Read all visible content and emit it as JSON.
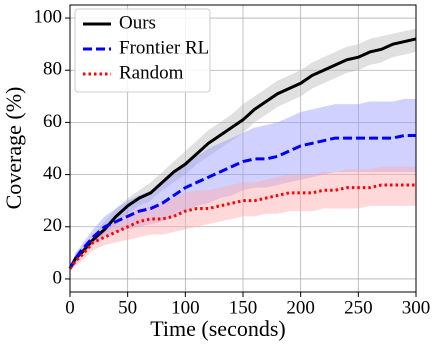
{
  "chart_data": {
    "type": "line",
    "x_label": "Time (seconds)",
    "y_label": "Coverage (%)",
    "x": [
      0,
      5,
      10,
      20,
      30,
      40,
      50,
      60,
      70,
      80,
      90,
      100,
      110,
      120,
      130,
      140,
      150,
      160,
      170,
      180,
      190,
      200,
      210,
      220,
      230,
      240,
      250,
      260,
      270,
      280,
      290,
      300
    ],
    "series": [
      {
        "name": "Ours",
        "color": "#000000",
        "band_color": "#bbbbbb",
        "dash": "solid",
        "values": [
          4,
          8,
          10,
          15,
          19,
          24,
          28,
          31,
          33,
          37,
          41,
          44,
          48,
          52,
          55,
          58,
          61,
          65,
          68,
          71,
          73,
          75,
          78,
          80,
          82,
          84,
          85,
          87,
          88,
          90,
          91,
          92
        ],
        "lower": [
          3,
          6,
          8,
          13,
          17,
          21,
          25,
          28,
          30,
          34,
          37,
          40,
          44,
          47,
          50,
          53,
          56,
          60,
          63,
          66,
          68,
          70,
          73,
          75,
          77,
          79,
          80,
          82,
          83,
          85,
          86,
          87
        ],
        "upper": [
          5,
          10,
          12,
          17,
          22,
          27,
          31,
          34,
          37,
          41,
          45,
          49,
          53,
          57,
          60,
          63,
          67,
          70,
          73,
          76,
          78,
          80,
          83,
          85,
          87,
          89,
          90,
          92,
          93,
          94,
          95,
          96
        ]
      },
      {
        "name": "Frontier RL",
        "color": "#0000ff",
        "band_color": "#9999ff",
        "dash": "dashed",
        "values": [
          4,
          8,
          11,
          16,
          20,
          22,
          24,
          26,
          27,
          29,
          32,
          35,
          37,
          39,
          41,
          43,
          45,
          46,
          46,
          47,
          49,
          51,
          52,
          53,
          54,
          54,
          54,
          54,
          54,
          54,
          55,
          55
        ],
        "lower": [
          3,
          6,
          9,
          13,
          16,
          18,
          19,
          20,
          21,
          22,
          24,
          26,
          28,
          29,
          31,
          32,
          34,
          35,
          35,
          36,
          37,
          38,
          39,
          40,
          41,
          41,
          41,
          41,
          41,
          41,
          41,
          41
        ],
        "upper": [
          5,
          10,
          13,
          19,
          24,
          27,
          30,
          32,
          34,
          37,
          40,
          44,
          47,
          50,
          52,
          54,
          56,
          58,
          59,
          60,
          62,
          64,
          65,
          66,
          67,
          67,
          67,
          68,
          68,
          68,
          69,
          69
        ]
      },
      {
        "name": "Random",
        "color": "#ff0000",
        "band_color": "#ffaaaa",
        "dash": "dotted",
        "values": [
          4,
          7,
          9,
          14,
          16,
          18,
          20,
          22,
          23,
          23,
          24,
          26,
          27,
          27,
          28,
          29,
          30,
          30,
          31,
          32,
          33,
          33,
          33,
          34,
          34,
          35,
          35,
          35,
          36,
          36,
          36,
          36
        ],
        "lower": [
          3,
          5,
          7,
          11,
          13,
          14,
          15,
          16,
          17,
          17,
          18,
          19,
          20,
          21,
          22,
          23,
          24,
          24,
          25,
          25,
          26,
          26,
          26,
          27,
          27,
          27,
          27,
          28,
          28,
          28,
          28,
          28
        ],
        "upper": [
          5,
          9,
          11,
          17,
          20,
          22,
          25,
          27,
          28,
          29,
          31,
          33,
          34,
          34,
          35,
          36,
          37,
          37,
          38,
          39,
          40,
          40,
          40,
          41,
          41,
          42,
          42,
          42,
          43,
          43,
          43,
          43
        ]
      }
    ],
    "xlim": [
      0,
      300
    ],
    "ylim": [
      -5,
      105
    ],
    "xticks": [
      0,
      50,
      100,
      150,
      200,
      250,
      300
    ],
    "yticks": [
      0,
      20,
      40,
      60,
      80,
      100
    ],
    "grid": true,
    "legend": "upper left"
  }
}
